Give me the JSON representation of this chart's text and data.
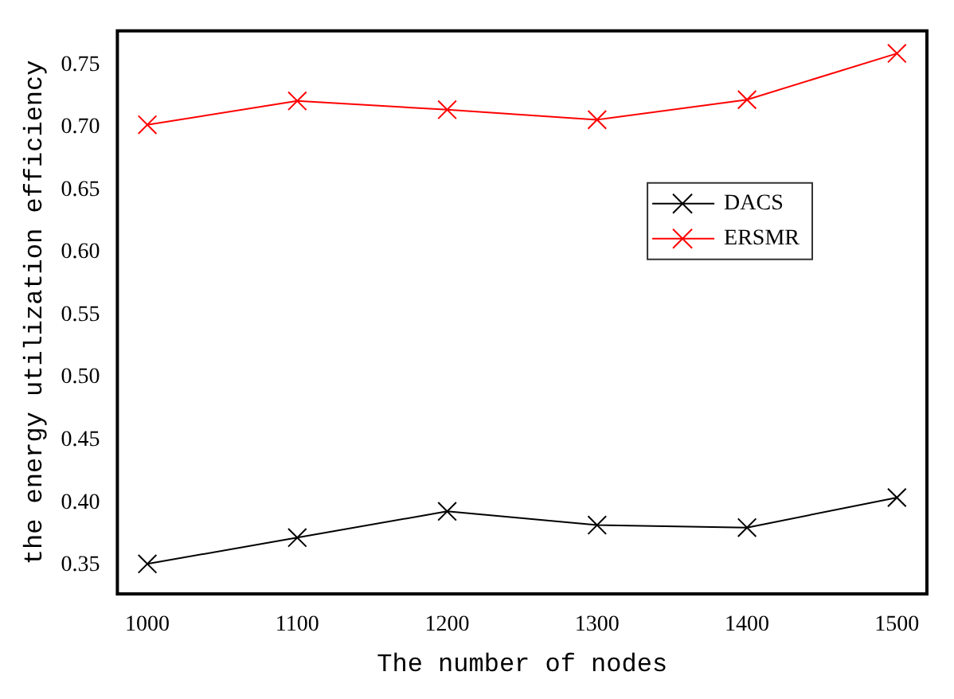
{
  "chart_data": {
    "type": "line",
    "xlabel": "The number of nodes",
    "ylabel": "the energy utilization efficiency",
    "x": [
      1000,
      1100,
      1200,
      1300,
      1400,
      1500
    ],
    "series": [
      {
        "name": "DACS",
        "color": "#000000",
        "values": [
          0.351,
          0.372,
          0.393,
          0.382,
          0.38,
          0.404
        ]
      },
      {
        "name": "ERSMR",
        "color": "#ff0000",
        "values": [
          0.702,
          0.721,
          0.714,
          0.706,
          0.722,
          0.759
        ]
      }
    ],
    "xlim": [
      980,
      1520
    ],
    "xticks": [
      1000,
      1100,
      1200,
      1300,
      1400,
      1500
    ],
    "ylim": [
      0.327,
      0.777
    ],
    "yticks": [
      {
        "value": 0.35,
        "label": "0.35"
      },
      {
        "value": 0.4,
        "label": "0.40"
      },
      {
        "value": 0.45,
        "label": "0.45"
      },
      {
        "value": 0.5,
        "label": "0.50"
      },
      {
        "value": 0.55,
        "label": "0.55"
      },
      {
        "value": 0.6,
        "label": "0.60"
      },
      {
        "value": 0.65,
        "label": "0.65"
      },
      {
        "value": 0.7,
        "label": "0.70"
      },
      {
        "value": 0.75,
        "label": "0.75"
      }
    ],
    "grid": false,
    "legend": "right",
    "marker": "cross",
    "line_style": "solid"
  }
}
